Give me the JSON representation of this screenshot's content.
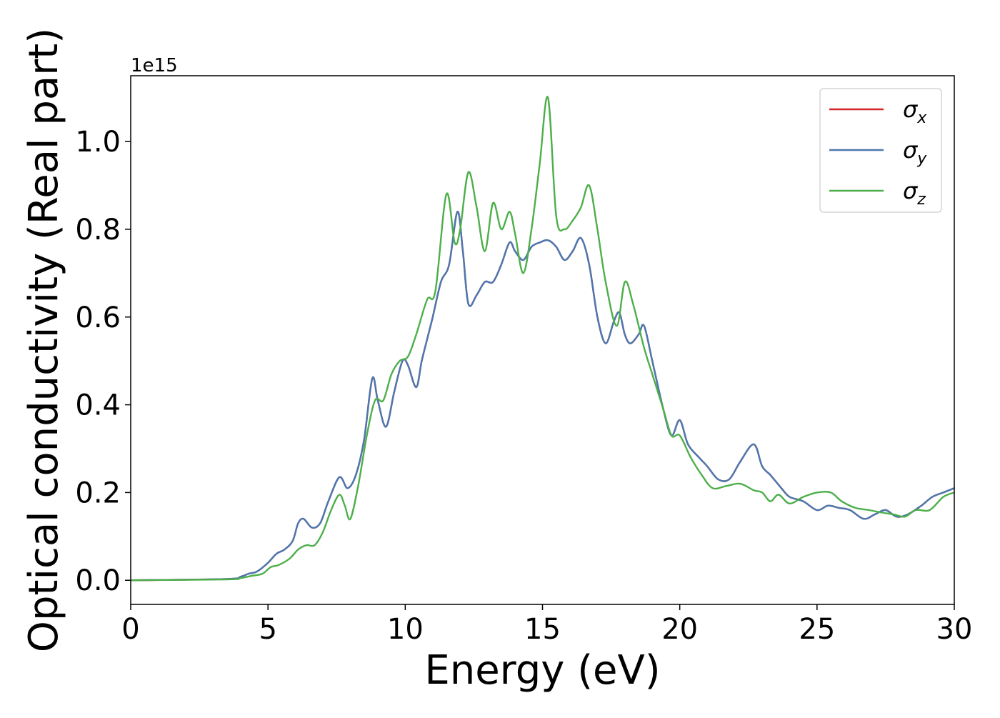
{
  "chart_data": {
    "type": "line",
    "xlabel": "Energy (eV)",
    "ylabel": "Optical conductivity (Real part)",
    "y_offset_label": "1e15",
    "y_scale": 1000000000000000.0,
    "xlim": [
      0,
      30
    ],
    "ylim": [
      -0.055,
      1.15
    ],
    "xticks": [
      0,
      5,
      10,
      15,
      20,
      25,
      30
    ],
    "yticks": [
      0.0,
      0.2,
      0.4,
      0.6,
      0.8,
      1.0
    ],
    "grid": false,
    "legend": {
      "position": "top-right"
    },
    "series": [
      {
        "name": "σx",
        "symbol": "σ",
        "subscript": "x",
        "color": "#d62728",
        "x": [
          0,
          3.5,
          4.0,
          4.3,
          4.6,
          5.0,
          5.3,
          5.6,
          5.9,
          6.1,
          6.3,
          6.6,
          6.9,
          7.2,
          7.6,
          7.9,
          8.2,
          8.5,
          8.8,
          9.0,
          9.3,
          9.6,
          9.9,
          10.1,
          10.4,
          10.6,
          10.8,
          11.0,
          11.3,
          11.6,
          11.9,
          12.1,
          12.3,
          12.6,
          12.9,
          13.2,
          13.5,
          13.8,
          14.0,
          14.3,
          14.6,
          14.9,
          15.2,
          15.5,
          15.8,
          16.1,
          16.4,
          16.7,
          17.0,
          17.3,
          17.6,
          17.8,
          18.0,
          18.2,
          18.5,
          18.7,
          19.0,
          19.4,
          19.7,
          20.0,
          20.3,
          20.7,
          21.0,
          21.4,
          21.8,
          22.2,
          22.7,
          23.0,
          23.3,
          23.7,
          24.0,
          24.5,
          25.0,
          25.4,
          25.8,
          26.2,
          26.7,
          27.1,
          27.5,
          27.9,
          28.3,
          28.8,
          29.2,
          29.6,
          30.0
        ],
        "y": [
          0,
          0.003,
          0.008,
          0.015,
          0.02,
          0.04,
          0.06,
          0.07,
          0.09,
          0.13,
          0.14,
          0.12,
          0.13,
          0.18,
          0.235,
          0.21,
          0.24,
          0.32,
          0.46,
          0.41,
          0.35,
          0.43,
          0.5,
          0.49,
          0.44,
          0.5,
          0.55,
          0.6,
          0.68,
          0.72,
          0.84,
          0.75,
          0.63,
          0.65,
          0.68,
          0.68,
          0.72,
          0.77,
          0.75,
          0.73,
          0.76,
          0.77,
          0.775,
          0.76,
          0.73,
          0.75,
          0.78,
          0.72,
          0.6,
          0.54,
          0.59,
          0.61,
          0.56,
          0.54,
          0.56,
          0.58,
          0.5,
          0.39,
          0.33,
          0.365,
          0.31,
          0.28,
          0.26,
          0.23,
          0.23,
          0.27,
          0.31,
          0.26,
          0.24,
          0.21,
          0.19,
          0.18,
          0.16,
          0.17,
          0.165,
          0.16,
          0.14,
          0.15,
          0.16,
          0.145,
          0.15,
          0.17,
          0.19,
          0.2,
          0.21
        ]
      },
      {
        "name": "σy",
        "symbol": "σ",
        "subscript": "y",
        "color": "#4a78b0",
        "x": [
          0,
          3.5,
          4.0,
          4.3,
          4.6,
          5.0,
          5.3,
          5.6,
          5.9,
          6.1,
          6.3,
          6.6,
          6.9,
          7.2,
          7.6,
          7.9,
          8.2,
          8.5,
          8.8,
          9.0,
          9.3,
          9.6,
          9.9,
          10.1,
          10.4,
          10.6,
          10.8,
          11.0,
          11.3,
          11.6,
          11.9,
          12.1,
          12.3,
          12.6,
          12.9,
          13.2,
          13.5,
          13.8,
          14.0,
          14.3,
          14.6,
          14.9,
          15.2,
          15.5,
          15.8,
          16.1,
          16.4,
          16.7,
          17.0,
          17.3,
          17.6,
          17.8,
          18.0,
          18.2,
          18.5,
          18.7,
          19.0,
          19.4,
          19.7,
          20.0,
          20.3,
          20.7,
          21.0,
          21.4,
          21.8,
          22.2,
          22.7,
          23.0,
          23.3,
          23.7,
          24.0,
          24.5,
          25.0,
          25.4,
          25.8,
          26.2,
          26.7,
          27.1,
          27.5,
          27.9,
          28.3,
          28.8,
          29.2,
          29.6,
          30.0
        ],
        "y": [
          0,
          0.003,
          0.008,
          0.015,
          0.02,
          0.04,
          0.06,
          0.07,
          0.09,
          0.13,
          0.14,
          0.12,
          0.13,
          0.18,
          0.235,
          0.21,
          0.24,
          0.32,
          0.46,
          0.41,
          0.35,
          0.43,
          0.5,
          0.49,
          0.44,
          0.5,
          0.55,
          0.6,
          0.68,
          0.72,
          0.84,
          0.75,
          0.63,
          0.65,
          0.68,
          0.68,
          0.72,
          0.77,
          0.75,
          0.73,
          0.76,
          0.77,
          0.775,
          0.76,
          0.73,
          0.75,
          0.78,
          0.72,
          0.6,
          0.54,
          0.59,
          0.61,
          0.56,
          0.54,
          0.56,
          0.58,
          0.5,
          0.39,
          0.33,
          0.365,
          0.31,
          0.28,
          0.26,
          0.23,
          0.23,
          0.27,
          0.31,
          0.26,
          0.24,
          0.21,
          0.19,
          0.18,
          0.16,
          0.17,
          0.165,
          0.16,
          0.14,
          0.15,
          0.16,
          0.145,
          0.15,
          0.17,
          0.19,
          0.2,
          0.21
        ]
      },
      {
        "name": "σz",
        "symbol": "σ",
        "subscript": "z",
        "color": "#4daf4a",
        "x": [
          0,
          3.5,
          4.0,
          4.4,
          4.8,
          5.1,
          5.4,
          5.8,
          6.1,
          6.4,
          6.7,
          7.0,
          7.3,
          7.6,
          7.8,
          8.0,
          8.3,
          8.6,
          8.9,
          9.2,
          9.5,
          9.8,
          10.1,
          10.4,
          10.8,
          11.1,
          11.5,
          11.8,
          12.0,
          12.3,
          12.6,
          12.9,
          13.2,
          13.5,
          13.8,
          14.0,
          14.3,
          14.6,
          14.9,
          15.2,
          15.5,
          15.8,
          16.1,
          16.4,
          16.7,
          17.0,
          17.3,
          17.7,
          18.0,
          18.3,
          18.7,
          19.0,
          19.4,
          19.7,
          20.0,
          20.4,
          20.8,
          21.2,
          21.7,
          22.2,
          22.7,
          23.0,
          23.3,
          23.6,
          24.0,
          24.5,
          25.0,
          25.5,
          25.9,
          26.4,
          26.9,
          27.3,
          27.8,
          28.2,
          28.6,
          29.1,
          29.6,
          30.0
        ],
        "y": [
          0,
          0.002,
          0.005,
          0.01,
          0.015,
          0.03,
          0.035,
          0.05,
          0.07,
          0.08,
          0.08,
          0.11,
          0.16,
          0.195,
          0.17,
          0.14,
          0.22,
          0.33,
          0.41,
          0.41,
          0.47,
          0.5,
          0.51,
          0.56,
          0.64,
          0.66,
          0.88,
          0.77,
          0.8,
          0.93,
          0.85,
          0.75,
          0.86,
          0.8,
          0.84,
          0.79,
          0.7,
          0.8,
          0.95,
          1.1,
          0.83,
          0.8,
          0.82,
          0.85,
          0.9,
          0.8,
          0.68,
          0.58,
          0.68,
          0.63,
          0.53,
          0.47,
          0.39,
          0.33,
          0.33,
          0.28,
          0.24,
          0.21,
          0.215,
          0.22,
          0.205,
          0.2,
          0.18,
          0.195,
          0.175,
          0.19,
          0.2,
          0.2,
          0.18,
          0.165,
          0.16,
          0.155,
          0.15,
          0.145,
          0.16,
          0.16,
          0.19,
          0.2
        ]
      }
    ]
  }
}
